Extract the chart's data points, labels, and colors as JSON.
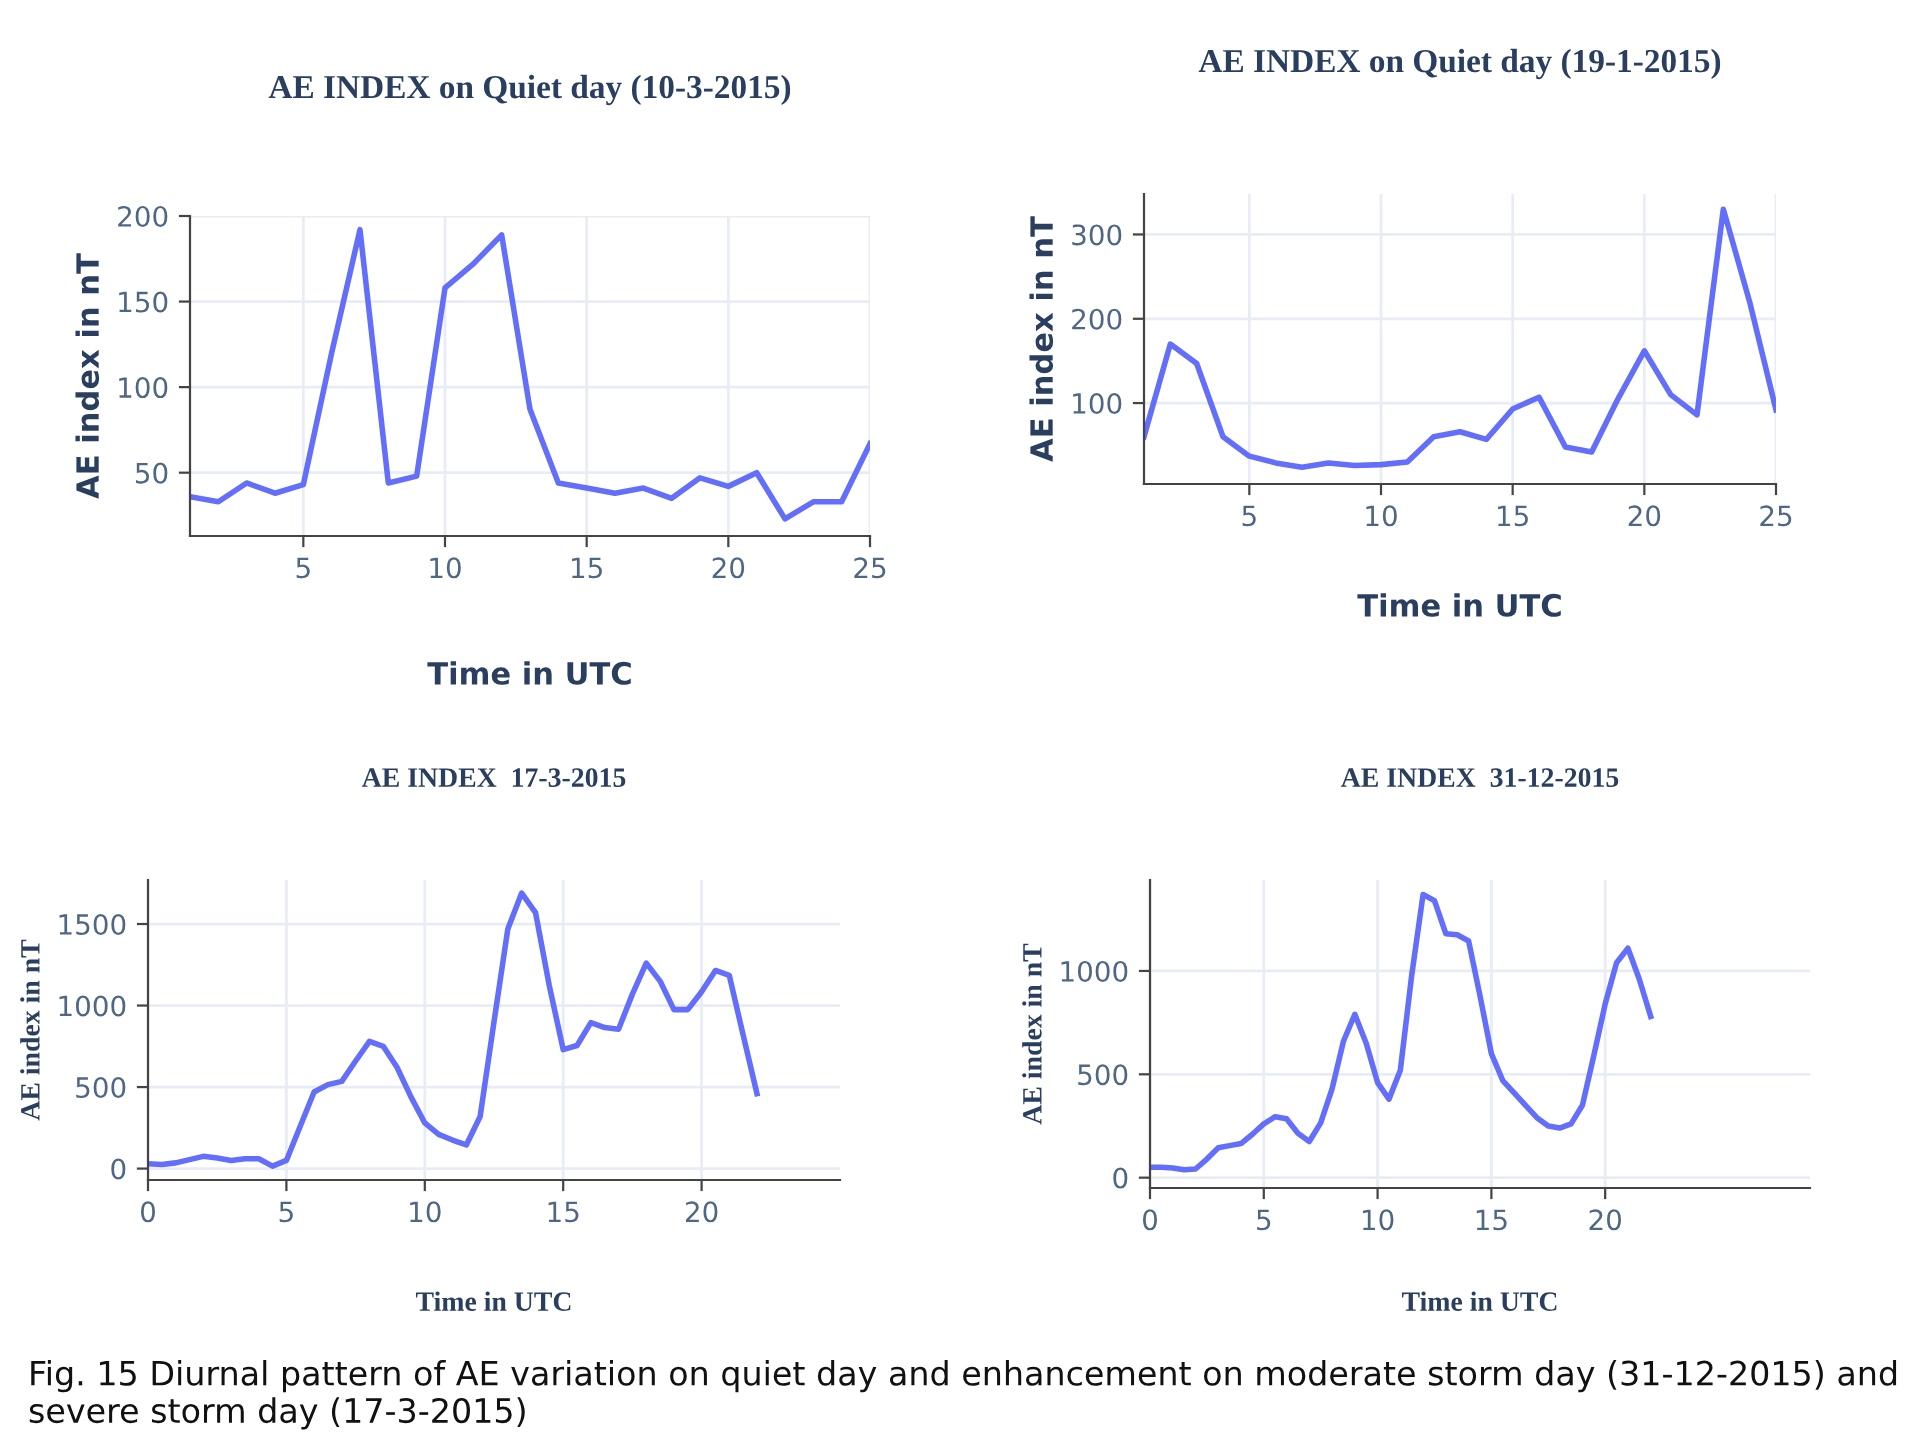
{
  "chart_data": [
    {
      "type": "line",
      "title": "AE INDEX on Quiet day (10-3-2015)",
      "xlabel": "Time in UTC",
      "ylabel": "AE index in nT",
      "x": [
        1,
        2,
        3,
        4,
        5,
        6,
        7,
        8,
        9,
        10,
        11,
        12,
        13,
        14,
        15,
        16,
        17,
        18,
        19,
        20,
        21,
        22,
        23,
        24,
        25
      ],
      "series": [
        {
          "color": "#636efa",
          "values": [
            36,
            33,
            44,
            38,
            43,
            120,
            192,
            44,
            48,
            158,
            172,
            189,
            87,
            44,
            41,
            38,
            41,
            35,
            47,
            42,
            50,
            23,
            33,
            33,
            67
          ]
        }
      ],
      "xlim": [
        1,
        25
      ],
      "xticks": [
        5,
        10,
        15,
        20,
        25
      ],
      "ylim": [
        13,
        200
      ],
      "yticks": [
        50,
        100,
        150,
        200
      ],
      "grid": true
    },
    {
      "type": "line",
      "title": "AE INDEX on Quiet day (19-1-2015)",
      "xlabel": "Time in UTC",
      "ylabel": "AE index in nT",
      "x": [
        1,
        2,
        3,
        4,
        5,
        6,
        7,
        8,
        9,
        10,
        11,
        12,
        13,
        14,
        15,
        16,
        17,
        18,
        19,
        20,
        21,
        22,
        23,
        24,
        25
      ],
      "series": [
        {
          "color": "#636efa",
          "values": [
            60,
            170,
            147,
            60,
            37,
            29,
            24,
            29,
            26,
            27,
            30,
            60,
            66,
            57,
            93,
            107,
            48,
            42,
            105,
            162,
            110,
            86,
            330,
            220,
            92
          ]
        }
      ],
      "xlim": [
        1,
        25
      ],
      "xticks": [
        5,
        10,
        15,
        20,
        25
      ],
      "ylim": [
        4,
        348
      ],
      "yticks": [
        100,
        200,
        300
      ],
      "grid": true
    },
    {
      "type": "line",
      "title": "AE INDEX  17-3-2015",
      "xlabel": "Time in UTC",
      "ylabel": "AE index in nT",
      "x": [
        0,
        0.5,
        1,
        1.5,
        2,
        2.5,
        3,
        3.5,
        4,
        4.5,
        5,
        5.5,
        6,
        6.5,
        7,
        7.5,
        8,
        8.5,
        9,
        9.5,
        10,
        10.5,
        11,
        11.5,
        12,
        12.5,
        13,
        13.5,
        14,
        14.5,
        15,
        15.5,
        16,
        16.5,
        17,
        17.5,
        18,
        18.5,
        19,
        19.5,
        20,
        20.5,
        21,
        21.5,
        22
      ],
      "series": [
        {
          "color": "#636efa",
          "values": [
            30,
            25,
            35,
            55,
            75,
            65,
            50,
            60,
            60,
            15,
            50,
            260,
            470,
            515,
            535,
            660,
            780,
            750,
            620,
            440,
            280,
            210,
            175,
            145,
            320,
            900,
            1470,
            1690,
            1570,
            1120,
            730,
            755,
            895,
            865,
            855,
            1070,
            1260,
            1150,
            975,
            975,
            1085,
            1215,
            1185,
            820,
            460
          ]
        }
      ],
      "xlim": [
        0,
        25
      ],
      "xticks": [
        0,
        5,
        10,
        15,
        20
      ],
      "ylim": [
        -70,
        1770
      ],
      "yticks": [
        0,
        500,
        1000,
        1500
      ],
      "grid": true
    },
    {
      "type": "line",
      "title": "AE INDEX  31-12-2015",
      "xlabel": "Time in UTC",
      "ylabel": "AE index in nT",
      "x": [
        0,
        0.5,
        1,
        1.5,
        2,
        2.5,
        3,
        3.5,
        4,
        4.5,
        5,
        5.5,
        6,
        6.5,
        7,
        7.5,
        8,
        8.5,
        9,
        9.5,
        10,
        10.5,
        11,
        11.5,
        12,
        12.5,
        13,
        13.5,
        14,
        14.5,
        15,
        15.5,
        16,
        16.5,
        17,
        17.5,
        18,
        18.5,
        19,
        19.5,
        20,
        20.5,
        21,
        21.5,
        22
      ],
      "series": [
        {
          "color": "#636efa",
          "values": [
            50,
            50,
            47,
            38,
            42,
            90,
            145,
            155,
            165,
            210,
            260,
            295,
            285,
            215,
            175,
            265,
            430,
            660,
            790,
            650,
            460,
            380,
            520,
            980,
            1370,
            1340,
            1180,
            1175,
            1145,
            880,
            600,
            470,
            410,
            350,
            290,
            250,
            240,
            260,
            350,
            590,
            840,
            1040,
            1110,
            960,
            780
          ]
        }
      ],
      "xlim": [
        0,
        29
      ],
      "xticks": [
        0,
        5,
        10,
        15,
        20
      ],
      "ylim": [
        -50,
        1440
      ],
      "yticks": [
        0,
        500,
        1000
      ],
      "grid": true,
      "annotations": [
        "Fig. 15 Diurnal pattern of AE variation on quiet day and enhancement on moderate storm day (31-12-2015) and severe storm day (17-3-2015)"
      ]
    }
  ]
}
